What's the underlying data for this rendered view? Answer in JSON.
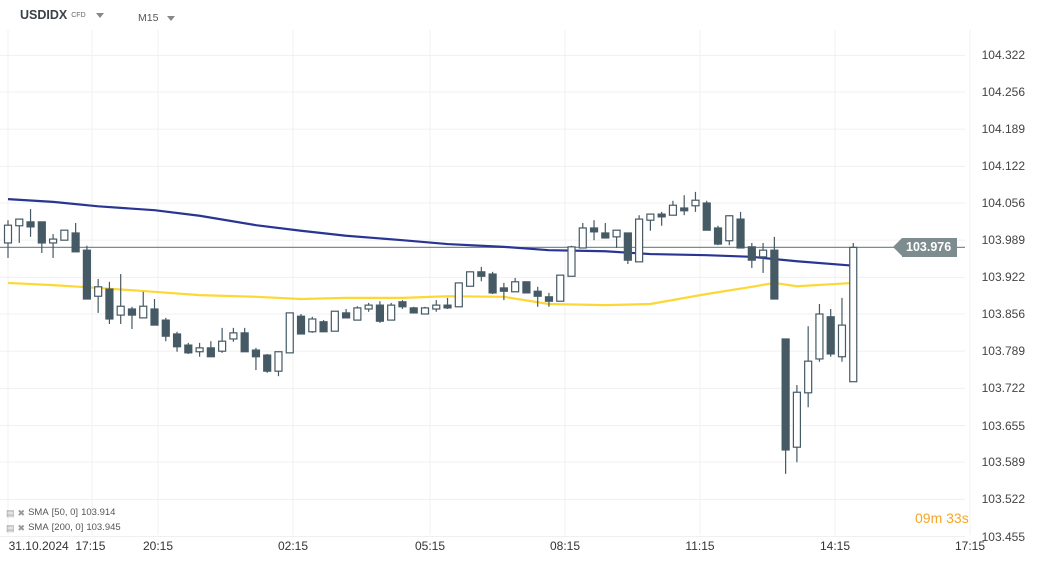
{
  "header": {
    "symbol": "USDIDX",
    "instrument_type": "CFD",
    "timeframe": "M15"
  },
  "price_axis": [
    "104.322",
    "104.256",
    "104.189",
    "104.122",
    "104.056",
    "103.989",
    "103.922",
    "103.856",
    "103.789",
    "103.722",
    "103.655",
    "103.589",
    "103.522",
    "103.455"
  ],
  "time_axis": [
    "31.10.2024  17:15",
    "20:15",
    "02:15",
    "05:15",
    "08:15",
    "11:15",
    "14:15",
    "17:15"
  ],
  "current_price": "103.976",
  "timer": {
    "minutes": "09",
    "m": "m",
    "seconds": "33",
    "s": "s"
  },
  "indicators": [
    {
      "label": "SMA",
      "params": "[50, 0]",
      "value": "103.914",
      "color": "#fdd835"
    },
    {
      "label": "SMA",
      "params": "[200, 0]",
      "value": "103.945",
      "color": "#283593"
    }
  ],
  "colors": {
    "bear": "#455a64",
    "bull_fill": "#ffffff",
    "wick": "#455a64",
    "price_line": "#7d8c8e"
  },
  "chart_data": {
    "type": "candlestick",
    "ylim": [
      103.455,
      104.322
    ],
    "ohlc": [
      [
        103.984,
        104.025,
        103.957,
        104.016
      ],
      [
        104.015,
        104.027,
        103.984,
        104.027
      ],
      [
        104.022,
        104.045,
        103.995,
        104.013
      ],
      [
        104.022,
        104.022,
        103.966,
        103.984
      ],
      [
        103.984,
        104.0,
        103.957,
        103.991
      ],
      [
        103.989,
        104.007,
        103.989,
        104.007
      ],
      [
        104.002,
        104.02,
        103.968,
        103.968
      ],
      [
        103.971,
        103.979,
        103.883,
        103.883
      ],
      [
        103.888,
        103.919,
        103.858,
        103.905
      ],
      [
        103.901,
        103.914,
        103.838,
        103.847
      ],
      [
        103.854,
        103.928,
        103.838,
        103.87
      ],
      [
        103.865,
        103.869,
        103.829,
        103.854
      ],
      [
        103.849,
        103.896,
        103.849,
        103.87
      ],
      [
        103.865,
        103.883,
        103.836,
        103.836
      ],
      [
        103.845,
        103.849,
        103.807,
        103.816
      ],
      [
        103.82,
        103.824,
        103.788,
        103.797
      ],
      [
        103.8,
        103.804,
        103.784,
        103.786
      ],
      [
        103.788,
        103.804,
        103.779,
        103.795
      ],
      [
        103.795,
        103.807,
        103.779,
        103.779
      ],
      [
        103.789,
        103.831,
        103.786,
        103.807
      ],
      [
        103.811,
        103.831,
        103.806,
        103.822
      ],
      [
        103.822,
        103.831,
        103.788,
        103.788
      ],
      [
        103.791,
        103.795,
        103.755,
        103.779
      ],
      [
        103.782,
        103.784,
        103.75,
        103.753
      ],
      [
        103.753,
        103.788,
        103.744,
        103.788
      ],
      [
        103.786,
        103.858,
        103.786,
        103.858
      ],
      [
        103.852,
        103.856,
        103.82,
        103.82
      ],
      [
        103.824,
        103.851,
        103.822,
        103.847
      ],
      [
        103.842,
        103.845,
        103.824,
        103.824
      ],
      [
        103.825,
        103.861,
        103.825,
        103.861
      ],
      [
        103.858,
        103.865,
        103.849,
        103.849
      ],
      [
        103.845,
        103.87,
        103.845,
        103.867
      ],
      [
        103.865,
        103.876,
        103.86,
        103.872
      ],
      [
        103.872,
        103.879,
        103.84,
        103.843
      ],
      [
        103.845,
        103.876,
        103.845,
        103.872
      ],
      [
        103.878,
        103.881,
        103.865,
        103.869
      ],
      [
        103.867,
        103.869,
        103.858,
        103.858
      ],
      [
        103.856,
        103.869,
        103.856,
        103.867
      ],
      [
        103.865,
        103.881,
        103.86,
        103.872
      ],
      [
        103.872,
        103.885,
        103.865,
        103.867
      ],
      [
        103.869,
        103.912,
        103.869,
        103.912
      ],
      [
        103.906,
        103.932,
        103.906,
        103.932
      ],
      [
        103.932,
        103.941,
        103.915,
        103.924
      ],
      [
        103.928,
        103.932,
        103.892,
        103.894
      ],
      [
        103.903,
        103.912,
        103.881,
        103.897
      ],
      [
        103.896,
        103.921,
        103.896,
        103.914
      ],
      [
        103.914,
        103.914,
        103.894,
        103.894
      ],
      [
        103.897,
        103.905,
        103.869,
        103.888
      ],
      [
        103.887,
        103.894,
        103.869,
        103.879
      ],
      [
        103.879,
        103.926,
        103.879,
        103.926
      ],
      [
        103.924,
        103.979,
        103.924,
        103.977
      ],
      [
        103.975,
        104.02,
        103.975,
        104.011
      ],
      [
        104.011,
        104.025,
        103.989,
        104.004
      ],
      [
        104.002,
        104.02,
        103.993,
        103.993
      ],
      [
        103.995,
        104.007,
        103.975,
        104.007
      ],
      [
        104.002,
        104.002,
        103.946,
        103.953
      ],
      [
        103.95,
        104.034,
        103.95,
        104.027
      ],
      [
        104.025,
        104.036,
        104.006,
        104.036
      ],
      [
        104.036,
        104.04,
        104.015,
        104.031
      ],
      [
        104.034,
        104.06,
        104.034,
        104.052
      ],
      [
        104.047,
        104.07,
        104.034,
        104.042
      ],
      [
        104.051,
        104.076,
        104.04,
        104.061
      ],
      [
        104.056,
        104.06,
        104.007,
        104.007
      ],
      [
        104.011,
        104.015,
        103.98,
        103.982
      ],
      [
        103.988,
        104.034,
        103.98,
        104.033
      ],
      [
        104.027,
        104.04,
        103.975,
        103.975
      ],
      [
        103.977,
        103.984,
        103.939,
        103.953
      ],
      [
        103.959,
        103.984,
        103.93,
        103.971
      ],
      [
        103.971,
        103.995,
        103.883,
        103.883
      ],
      [
        103.811,
        103.811,
        103.568,
        103.611
      ],
      [
        103.616,
        103.728,
        103.589,
        103.715
      ],
      [
        103.714,
        103.834,
        103.688,
        103.771
      ],
      [
        103.775,
        103.874,
        103.77,
        103.856
      ],
      [
        103.851,
        103.865,
        103.779,
        103.784
      ],
      [
        103.779,
        103.885,
        103.77,
        103.836
      ],
      [
        103.734,
        103.984,
        103.734,
        103.976
      ]
    ],
    "sma200": {
      "idx": [
        0,
        4,
        8,
        13,
        17,
        22,
        26,
        30,
        35,
        39,
        44,
        48,
        53,
        57,
        62,
        66,
        70,
        75
      ],
      "values": [
        104.063,
        104.058,
        104.05,
        104.043,
        104.033,
        104.016,
        104.006,
        103.997,
        103.989,
        103.982,
        103.977,
        103.971,
        103.969,
        103.964,
        103.962,
        103.959,
        103.951,
        103.943
      ]
    },
    "sma50": {
      "idx": [
        0,
        4,
        8,
        13,
        17,
        22,
        26,
        30,
        35,
        39,
        44,
        48,
        53,
        57,
        62,
        66,
        68,
        70,
        75
      ],
      "values": [
        103.912,
        103.908,
        103.903,
        103.896,
        103.89,
        103.887,
        103.883,
        103.885,
        103.885,
        103.888,
        103.887,
        103.874,
        103.872,
        103.874,
        103.892,
        103.905,
        103.912,
        103.906,
        103.912
      ]
    }
  }
}
